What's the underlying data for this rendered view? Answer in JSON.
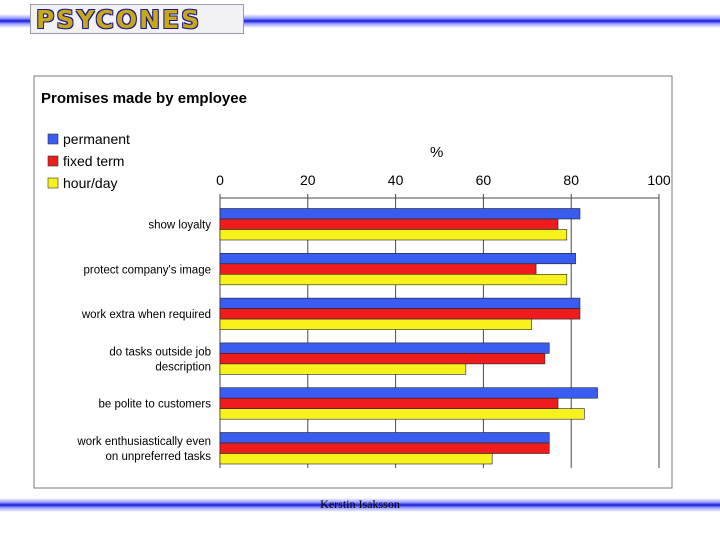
{
  "header": {
    "logo_text": "PSYCONES"
  },
  "footer": {
    "author": "Kerstin Isaksson"
  },
  "colors": {
    "permanent": "#3a5cf0",
    "fixed_term": "#ee1c1c",
    "hour_day": "#f7f21e",
    "band": "#1a1ad8"
  },
  "chart_data": {
    "type": "bar",
    "orientation": "horizontal",
    "title": "Promises made by employee",
    "xlabel": "%",
    "ylabel": "",
    "xlim": [
      0,
      100
    ],
    "xticks": [
      0,
      20,
      40,
      60,
      80,
      100
    ],
    "grid": true,
    "legend_position": "top-left",
    "categories": [
      [
        "show loyalty"
      ],
      [
        "protect company's image"
      ],
      [
        "work extra when required"
      ],
      [
        "do tasks outside job",
        "description"
      ],
      [
        "be polite to customers"
      ],
      [
        "work enthusiastically even",
        "on unpreferred tasks"
      ]
    ],
    "series": [
      {
        "name": "permanent",
        "color": "#3a5cf0",
        "values": [
          82,
          81,
          82,
          75,
          86,
          75
        ]
      },
      {
        "name": "fixed term",
        "color": "#ee1c1c",
        "values": [
          77,
          72,
          82,
          74,
          77,
          75
        ]
      },
      {
        "name": "hour/day",
        "color": "#f7f21e",
        "values": [
          79,
          79,
          71,
          56,
          83,
          62
        ]
      }
    ]
  }
}
